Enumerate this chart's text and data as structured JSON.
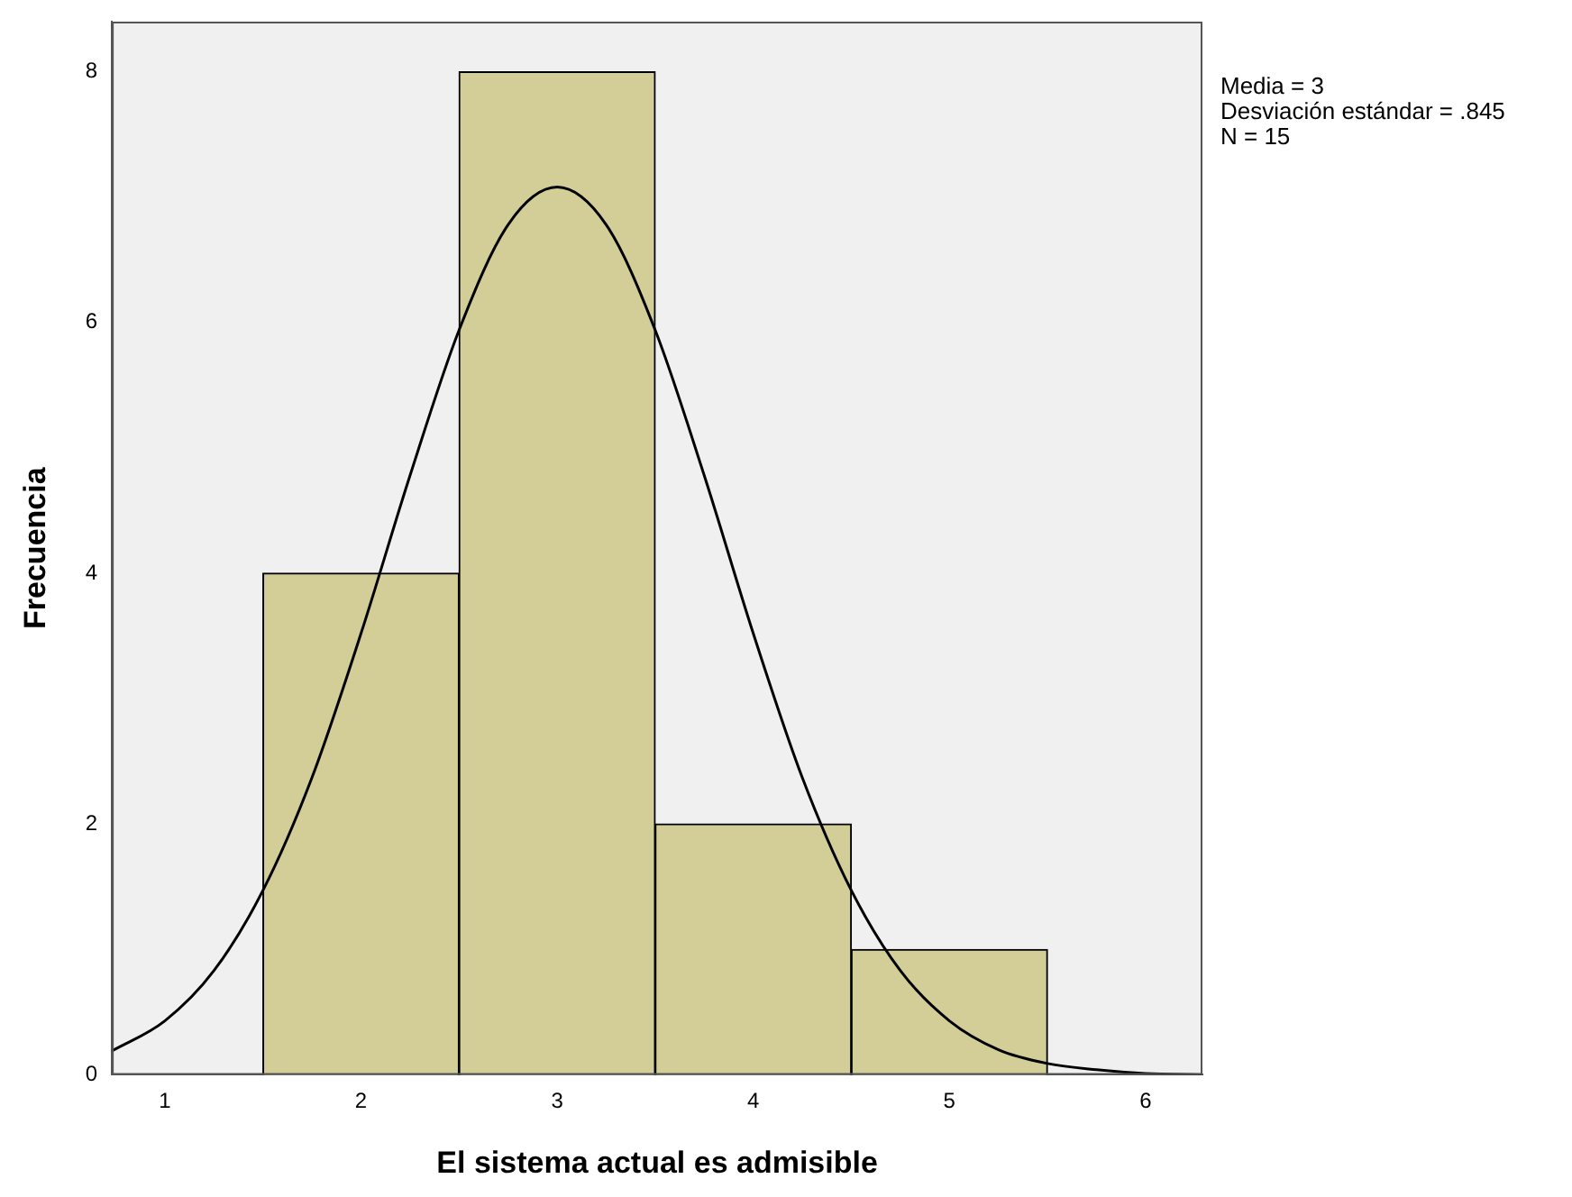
{
  "chart_data": {
    "type": "histogram",
    "xlabel": "El sistema actual es admisible",
    "ylabel": "Frecuencia",
    "bins": [
      1.5,
      2.5,
      3.5,
      4.5,
      5.5
    ],
    "values": [
      4,
      8,
      2,
      1
    ],
    "color": "#d3ce97",
    "xlim": [
      0.73,
      6.29
    ],
    "xticks": [
      1,
      2,
      3,
      4,
      5,
      6
    ],
    "ylim": [
      0,
      8.4
    ],
    "yticks": [
      0,
      2,
      4,
      6,
      8
    ],
    "grid": false,
    "legend": false,
    "series": [
      {
        "type": "line",
        "color": "#000000",
        "x": [
          0.73,
          1,
          1.25,
          1.5,
          1.75,
          2,
          2.25,
          2.5,
          2.75,
          3,
          3.25,
          3.5,
          3.75,
          4,
          4.25,
          4.5,
          4.75,
          5,
          5.25,
          5.5,
          5.75,
          6,
          6.29
        ],
        "values": [
          0.19,
          0.43,
          0.83,
          1.47,
          2.37,
          3.52,
          4.78,
          5.94,
          6.78,
          7.08,
          6.78,
          5.94,
          4.78,
          3.52,
          2.37,
          1.47,
          0.83,
          0.43,
          0.2,
          0.09,
          0.04,
          0.01,
          0
        ]
      }
    ],
    "annotations": [
      "Media = 3",
      "Desviación estándar = .845",
      "N = 15"
    ]
  }
}
